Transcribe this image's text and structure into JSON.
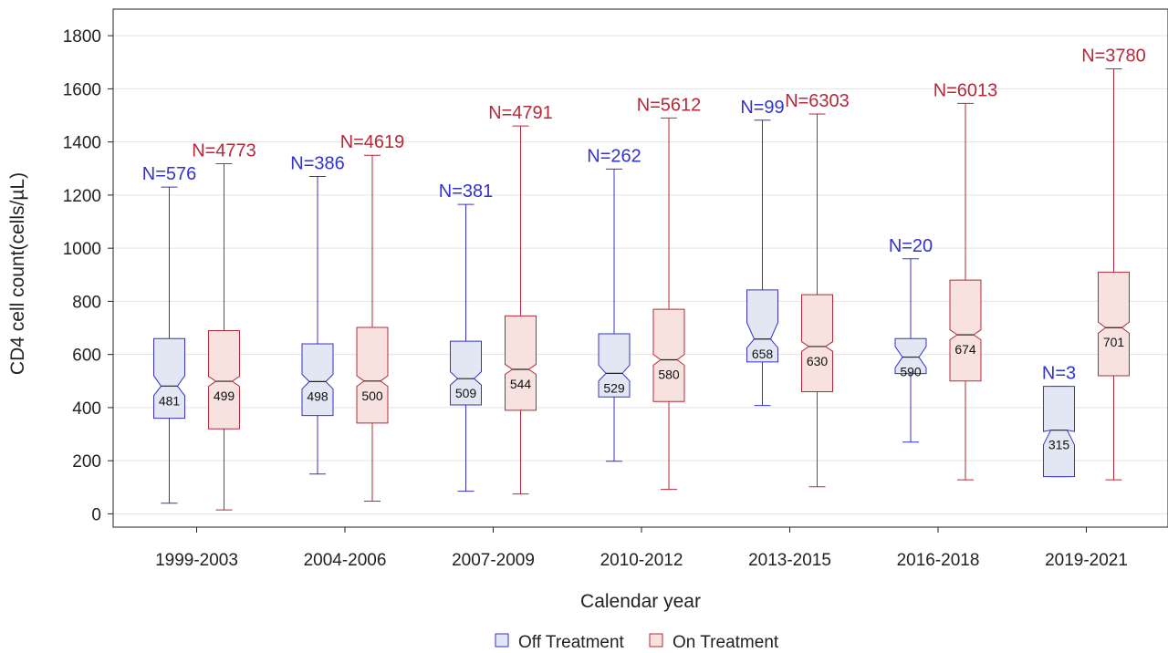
{
  "chart_data": {
    "type": "box",
    "xlabel": "Calendar year",
    "ylabel": "CD4 cell count(cells/µL)",
    "ylim": [
      -50,
      1900
    ],
    "yticks": [
      0,
      200,
      400,
      600,
      800,
      1000,
      1200,
      1400,
      1600,
      1800
    ],
    "grid": true,
    "legend_position": "bottom",
    "categories": [
      "1999-2003",
      "2004-2006",
      "2007-2009",
      "2010-2012",
      "2013-2015",
      "2016-2018",
      "2019-2021"
    ],
    "series": [
      {
        "name": "Off Treatment",
        "color": "#3333cc",
        "fill": "#e3e6f3",
        "boxes": [
          {
            "whisker_low": 40,
            "q1": 360,
            "median": 481,
            "q3": 660,
            "whisker_high": 1230,
            "notch_low": 445,
            "notch_high": 520,
            "n_label": "N=576",
            "median_label": "481"
          },
          {
            "whisker_low": 150,
            "q1": 370,
            "median": 498,
            "q3": 640,
            "whisker_high": 1270,
            "notch_low": 470,
            "notch_high": 525,
            "n_label": "N=386",
            "median_label": "498"
          },
          {
            "whisker_low": 85,
            "q1": 410,
            "median": 509,
            "q3": 650,
            "whisker_high": 1165,
            "notch_low": 485,
            "notch_high": 535,
            "n_label": "N=381",
            "median_label": "509"
          },
          {
            "whisker_low": 198,
            "q1": 440,
            "median": 529,
            "q3": 678,
            "whisker_high": 1298,
            "notch_low": 500,
            "notch_high": 560,
            "n_label": "N=262",
            "median_label": "529"
          },
          {
            "whisker_low": 408,
            "q1": 572,
            "median": 658,
            "q3": 843,
            "whisker_high": 1482,
            "notch_low": 625,
            "notch_high": 720,
            "n_label": "N=99",
            "median_label": "658"
          },
          {
            "whisker_low": 270,
            "q1": 528,
            "median": 590,
            "q3": 660,
            "whisker_high": 960,
            "notch_low": 550,
            "notch_high": 630,
            "n_label": "N=20",
            "median_label": "590"
          },
          {
            "whisker_low": 140,
            "q1": 140,
            "median": 315,
            "q3": 480,
            "whisker_high": 480,
            "notch_low": 260,
            "notch_high": 310,
            "n_label": "N=3",
            "median_label": "315"
          }
        ]
      },
      {
        "name": "On Treatment",
        "color": "#b52a3a",
        "fill": "#f7e2e0",
        "boxes": [
          {
            "whisker_low": 15,
            "q1": 320,
            "median": 499,
            "q3": 690,
            "whisker_high": 1318,
            "notch_low": 480,
            "notch_high": 518,
            "n_label": "N=4773",
            "median_label": "499"
          },
          {
            "whisker_low": 48,
            "q1": 342,
            "median": 500,
            "q3": 702,
            "whisker_high": 1350,
            "notch_low": 480,
            "notch_high": 520,
            "n_label": "N=4619",
            "median_label": "500"
          },
          {
            "whisker_low": 75,
            "q1": 390,
            "median": 544,
            "q3": 745,
            "whisker_high": 1460,
            "notch_low": 525,
            "notch_high": 563,
            "n_label": "N=4791",
            "median_label": "544"
          },
          {
            "whisker_low": 92,
            "q1": 423,
            "median": 580,
            "q3": 770,
            "whisker_high": 1490,
            "notch_low": 560,
            "notch_high": 600,
            "n_label": "N=5612",
            "median_label": "580"
          },
          {
            "whisker_low": 102,
            "q1": 460,
            "median": 630,
            "q3": 825,
            "whisker_high": 1505,
            "notch_low": 612,
            "notch_high": 648,
            "n_label": "N=6303",
            "median_label": "630"
          },
          {
            "whisker_low": 128,
            "q1": 500,
            "median": 674,
            "q3": 880,
            "whisker_high": 1545,
            "notch_low": 655,
            "notch_high": 693,
            "n_label": "N=6013",
            "median_label": "674"
          },
          {
            "whisker_low": 128,
            "q1": 520,
            "median": 701,
            "q3": 910,
            "whisker_high": 1675,
            "notch_low": 680,
            "notch_high": 722,
            "n_label": "N=3780",
            "median_label": "701"
          }
        ]
      }
    ]
  }
}
